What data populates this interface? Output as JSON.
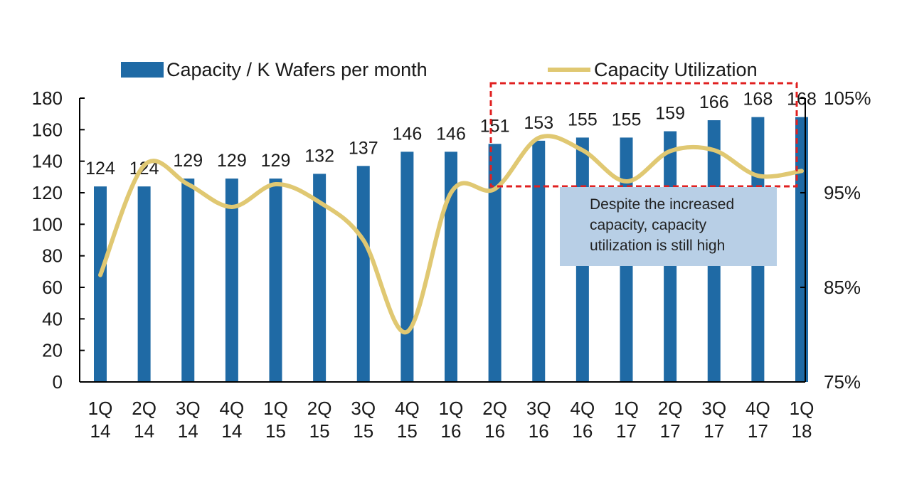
{
  "chart_data": {
    "type": "bar+line",
    "categories": [
      [
        "1Q",
        "14"
      ],
      [
        "2Q",
        "14"
      ],
      [
        "3Q",
        "14"
      ],
      [
        "4Q",
        "14"
      ],
      [
        "1Q",
        "15"
      ],
      [
        "2Q",
        "15"
      ],
      [
        "3Q",
        "15"
      ],
      [
        "4Q",
        "15"
      ],
      [
        "1Q",
        "16"
      ],
      [
        "2Q",
        "16"
      ],
      [
        "3Q",
        "16"
      ],
      [
        "4Q",
        "16"
      ],
      [
        "1Q",
        "17"
      ],
      [
        "2Q",
        "17"
      ],
      [
        "3Q",
        "17"
      ],
      [
        "4Q",
        "17"
      ],
      [
        "1Q",
        "18"
      ]
    ],
    "series": [
      {
        "name": "Capacity / K Wafers per month",
        "type": "bar",
        "axis": "left",
        "color": "#1f6aa5",
        "values": [
          124,
          124,
          129,
          129,
          129,
          132,
          137,
          146,
          146,
          151,
          153,
          155,
          155,
          159,
          166,
          168,
          168
        ]
      },
      {
        "name": "Capacity Utilization",
        "type": "line",
        "axis": "right",
        "color": "#e0c872",
        "values": [
          86.3,
          97.9,
          95.9,
          93.5,
          95.9,
          94.0,
          90.0,
          80.3,
          95.0,
          95.4,
          100.8,
          99.5,
          96.2,
          99.4,
          99.5,
          96.8,
          97.3
        ]
      }
    ],
    "y_left": {
      "min": 0,
      "max": 180,
      "ticks": [
        0,
        20,
        40,
        60,
        80,
        100,
        120,
        140,
        160,
        180
      ]
    },
    "y_right": {
      "min": 75,
      "max": 105,
      "ticks": [
        "75%",
        "85%",
        "95%",
        "105%"
      ],
      "tick_values": [
        75,
        85,
        95,
        105
      ]
    },
    "grid": false,
    "legend_position": "top",
    "highlight_box_color": "#e02020",
    "annotation": {
      "text": "Despite the increased capacity, capacity utilization is still high",
      "background": "#b8cfe6"
    }
  }
}
